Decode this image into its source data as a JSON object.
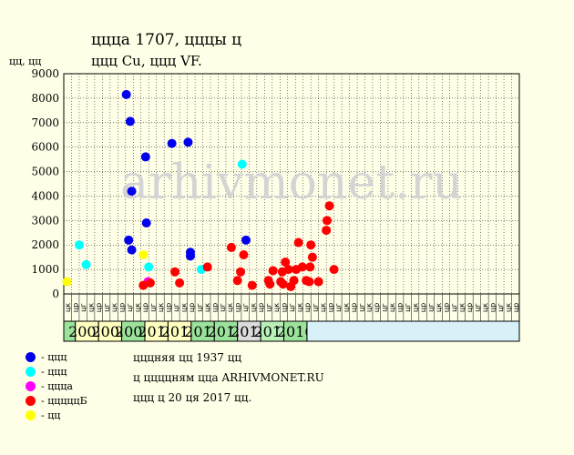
{
  "title_line1": "ццца 1707, цццы ц",
  "title_line2": "ццц Cu, ццц VF.",
  "y_unit": "цц, цц",
  "watermark": "arhivmonet.ru",
  "legend": [
    {
      "label": "- ццц",
      "color": "#0000ee"
    },
    {
      "label": "- ццц",
      "color": "#00ffff"
    },
    {
      "label": "- ццца",
      "color": "#ff00ff"
    },
    {
      "label": "- цццццБ",
      "color": "#ff0000"
    },
    {
      "label": "- цц",
      "color": "#ffff00"
    }
  ],
  "notes": [
    "цццняя цц 1937 цц",
    "ц ццццням цца ARHIVMONET.RU",
    "ццц ц 20 ця 2017 цц."
  ],
  "month_labels": [
    "цк",
    "цр",
    "цг",
    "цк",
    "цр",
    "цг",
    "цк",
    "цр",
    "цг",
    "цк",
    "цр",
    "цг",
    "цк",
    "цр",
    "цг",
    "цк",
    "цр",
    "цг",
    "цк",
    "цр",
    "цг",
    "цк",
    "цр",
    "цг",
    "цк",
    "цр",
    "цг",
    "цк",
    "цр",
    "цг",
    "цк",
    "цр",
    "цг",
    "цк",
    "цр",
    "цг",
    "цк",
    "цр",
    "цг",
    "цк",
    "цр",
    "цг",
    "цк",
    "цр",
    "цг",
    "цк",
    "цр",
    "цг",
    "цк",
    "цр",
    "цг",
    "цк",
    "цр",
    "цг",
    "цк",
    "цр",
    "цг",
    "цк",
    "цр"
  ],
  "chart_data": {
    "type": "scatter",
    "ylim": [
      0,
      9000
    ],
    "yticks": [
      0,
      1000,
      2000,
      3000,
      4000,
      5000,
      6000,
      7000,
      8000,
      9000
    ],
    "grid": true,
    "legend_position": "bottom-left",
    "years": [
      {
        "label": "2007",
        "color": "#ffffc0"
      },
      {
        "label": "2008",
        "color": "#ffffc0"
      },
      {
        "label": "2009",
        "color": "#9be39b"
      },
      {
        "label": "2010",
        "color": "#ffffc0"
      },
      {
        "label": "2011",
        "color": "#ffffc0"
      },
      {
        "label": "2012",
        "color": "#9be39b"
      },
      {
        "label": "2013",
        "color": "#9be39b"
      },
      {
        "label": "2014",
        "color": "#dcdcdc"
      },
      {
        "label": "2015",
        "color": "#b8f0b8"
      },
      {
        "label": "2016",
        "color": "#9be39b"
      }
    ],
    "series": [
      {
        "color": "#0000ee",
        "points": [
          {
            "x": 8.1,
            "y": 8150
          },
          {
            "x": 8.6,
            "y": 7050
          },
          {
            "x": 8.8,
            "y": 4200
          },
          {
            "x": 8.4,
            "y": 2200
          },
          {
            "x": 8.8,
            "y": 1800
          },
          {
            "x": 10.6,
            "y": 5600
          },
          {
            "x": 10.7,
            "y": 2900
          },
          {
            "x": 14.0,
            "y": 6150
          },
          {
            "x": 16.1,
            "y": 6200
          },
          {
            "x": 16.4,
            "y": 1700
          },
          {
            "x": 16.4,
            "y": 1550
          },
          {
            "x": 23.6,
            "y": 2200
          }
        ]
      },
      {
        "color": "#00ffff",
        "points": [
          {
            "x": 2.0,
            "y": 2000
          },
          {
            "x": 2.9,
            "y": 1200
          },
          {
            "x": 11.0,
            "y": 1100
          },
          {
            "x": 17.8,
            "y": 1000
          },
          {
            "x": 23.1,
            "y": 5300
          }
        ]
      },
      {
        "color": "#ff00ff",
        "points": [
          {
            "x": 10.9,
            "y": 500
          }
        ]
      },
      {
        "color": "#ff0000",
        "points": [
          {
            "x": 10.3,
            "y": 350
          },
          {
            "x": 11.2,
            "y": 450
          },
          {
            "x": 14.4,
            "y": 900
          },
          {
            "x": 15.0,
            "y": 450
          },
          {
            "x": 18.6,
            "y": 1100
          },
          {
            "x": 21.7,
            "y": 1900
          },
          {
            "x": 22.5,
            "y": 550
          },
          {
            "x": 22.9,
            "y": 900
          },
          {
            "x": 23.3,
            "y": 1600
          },
          {
            "x": 24.4,
            "y": 350
          },
          {
            "x": 26.5,
            "y": 550
          },
          {
            "x": 26.7,
            "y": 400
          },
          {
            "x": 27.1,
            "y": 950
          },
          {
            "x": 28.1,
            "y": 500
          },
          {
            "x": 28.4,
            "y": 400
          },
          {
            "x": 28.3,
            "y": 900
          },
          {
            "x": 28.7,
            "y": 1300
          },
          {
            "x": 29.1,
            "y": 1000
          },
          {
            "x": 29.4,
            "y": 300
          },
          {
            "x": 29.8,
            "y": 550
          },
          {
            "x": 30.1,
            "y": 1000
          },
          {
            "x": 30.4,
            "y": 2100
          },
          {
            "x": 30.9,
            "y": 1100
          },
          {
            "x": 31.4,
            "y": 550
          },
          {
            "x": 31.8,
            "y": 500
          },
          {
            "x": 31.9,
            "y": 1100
          },
          {
            "x": 32.0,
            "y": 2000
          },
          {
            "x": 32.2,
            "y": 1500
          },
          {
            "x": 33.0,
            "y": 500
          },
          {
            "x": 34.0,
            "y": 2600
          },
          {
            "x": 34.1,
            "y": 3000
          },
          {
            "x": 34.4,
            "y": 3600
          },
          {
            "x": 35.0,
            "y": 1000
          }
        ]
      },
      {
        "color": "#ffff00",
        "points": [
          {
            "x": 0.4,
            "y": 500
          },
          {
            "x": 10.3,
            "y": 1600
          }
        ]
      }
    ]
  }
}
